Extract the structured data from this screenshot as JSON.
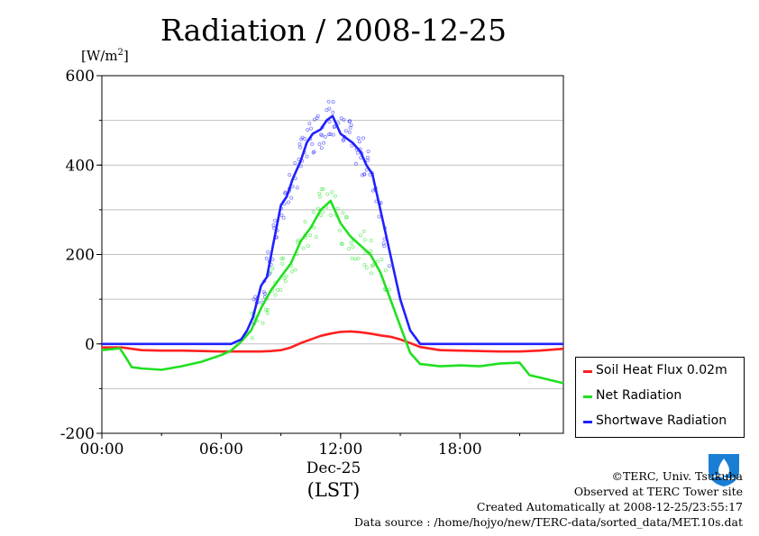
{
  "chart_data": {
    "type": "line",
    "title": "Radiation / 2008-12-25",
    "ylabel_unit_base": "[W/m",
    "ylabel_unit_sup": "2",
    "ylabel_unit_close": "]",
    "xlabel": "(LST)",
    "x_date_label": "Dec-25",
    "ylim": [
      -200,
      600
    ],
    "y_ticks": [
      "600",
      "400",
      "200",
      "0",
      "-200"
    ],
    "y_tick_values": [
      600,
      400,
      200,
      0,
      -200
    ],
    "xlim": [
      0,
      23.2
    ],
    "x_ticks": [
      "00:00",
      "06:00",
      "12:00",
      "18:00"
    ],
    "x_tick_values": [
      0,
      6,
      12,
      18
    ],
    "grid": true,
    "legend_position": "bottom-right outside",
    "series": [
      {
        "name": "Soil Heat Flux 0.02m",
        "color": "#ff2020",
        "x": [
          0,
          1,
          2,
          3,
          4,
          5,
          6,
          7,
          8,
          8.5,
          9,
          9.5,
          10,
          10.5,
          11,
          11.5,
          12,
          12.5,
          13,
          13.5,
          14,
          14.5,
          15,
          15.5,
          16,
          17,
          18,
          19,
          20,
          21,
          22,
          23.2
        ],
        "y": [
          -8,
          -8,
          -14,
          -15,
          -15,
          -16,
          -17,
          -17,
          -17,
          -16,
          -14,
          -8,
          2,
          10,
          18,
          23,
          27,
          28,
          26,
          23,
          19,
          16,
          10,
          2,
          -7,
          -14,
          -15,
          -16,
          -17,
          -17,
          -15,
          -11
        ]
      },
      {
        "name": "Net Radiation",
        "color": "#20e020",
        "x": [
          0,
          0.9,
          1.2,
          1.5,
          2,
          3,
          4,
          5,
          6,
          6.5,
          7,
          7.5,
          8,
          8.5,
          9,
          9.5,
          10,
          10.5,
          11,
          11.5,
          12,
          12.5,
          13,
          13.5,
          14,
          14.5,
          15,
          15.5,
          16,
          17,
          18,
          19,
          20,
          21,
          21.5,
          22,
          23.2
        ],
        "y": [
          -14,
          -10,
          -30,
          -52,
          -55,
          -58,
          -50,
          -40,
          -25,
          -15,
          5,
          30,
          80,
          120,
          150,
          180,
          230,
          260,
          300,
          320,
          270,
          240,
          220,
          200,
          160,
          100,
          40,
          -20,
          -45,
          -50,
          -48,
          -50,
          -44,
          -42,
          -70,
          -75,
          -88
        ]
      },
      {
        "name": "Shortwave Radiation",
        "color": "#2020ff",
        "x": [
          0,
          1,
          2,
          3,
          4,
          5,
          6,
          6.5,
          7,
          7.3,
          7.6,
          8,
          8.3,
          8.6,
          9,
          9.3,
          9.6,
          10,
          10.3,
          10.6,
          11,
          11.3,
          11.6,
          12,
          12.3,
          12.6,
          13,
          13.3,
          13.6,
          14,
          14.5,
          15,
          15.5,
          16,
          17,
          18,
          19,
          20,
          21,
          22,
          23.2
        ],
        "y": [
          0,
          0,
          0,
          0,
          0,
          0,
          0,
          0,
          10,
          30,
          60,
          130,
          150,
          220,
          310,
          330,
          370,
          410,
          450,
          470,
          480,
          500,
          510,
          470,
          460,
          450,
          430,
          400,
          380,
          300,
          200,
          100,
          30,
          0,
          0,
          0,
          0,
          0,
          0,
          0,
          0
        ]
      }
    ]
  },
  "credits": {
    "copyright": "©TERC, Univ. Tsukuba",
    "observed": "Observed at TERC Tower site",
    "created": "Created Automatically at 2008-12-25/23:55:17",
    "source": "Data source : /home/hojyo/new/TERC-data/sorted_data/MET.10s.dat"
  },
  "logo": {
    "label": "TERC",
    "color": "#1a7fd4"
  }
}
